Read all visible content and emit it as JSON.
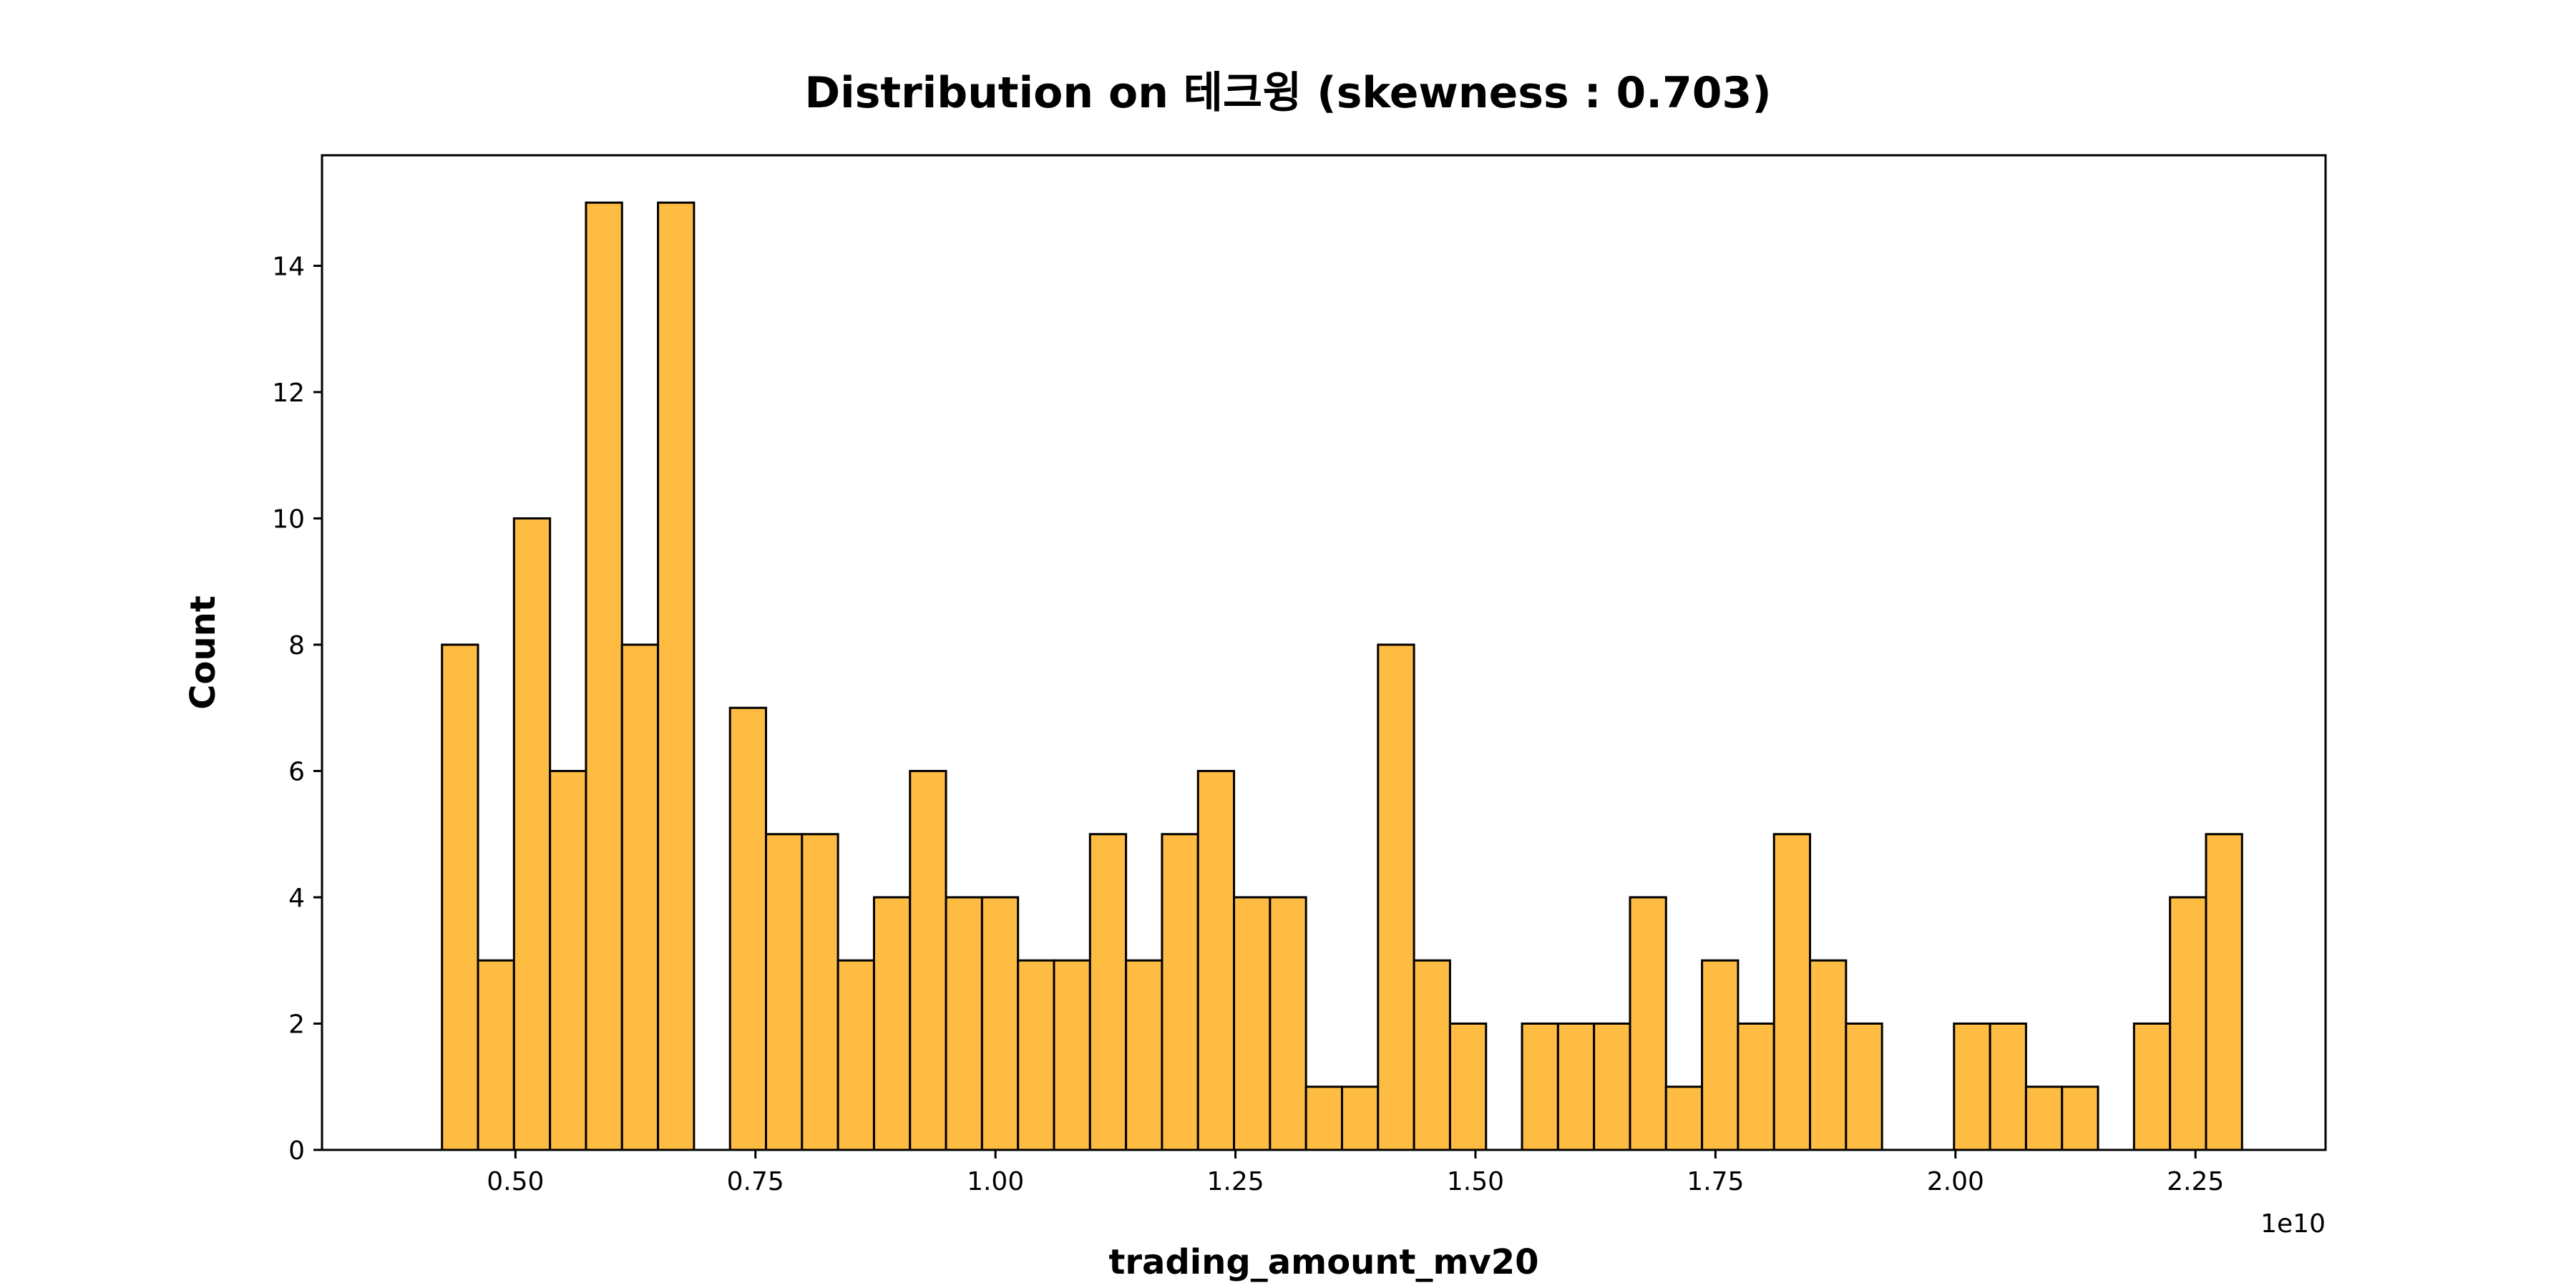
{
  "chart_data": {
    "type": "bar",
    "title": "Distribution on 테크윙 (skewness : 0.703)",
    "xlabel": "trading_amount_mv20",
    "ylabel": "Count",
    "x_offset_label": "1e10",
    "xlim": [
      0.2985,
      2.3855
    ],
    "ylim": [
      0,
      15.75
    ],
    "bin_start": 0.4235,
    "bin_width": 0.0375,
    "counts": [
      8,
      3,
      10,
      6,
      15,
      8,
      15,
      0,
      7,
      5,
      5,
      3,
      4,
      6,
      4,
      4,
      3,
      3,
      5,
      3,
      5,
      6,
      4,
      4,
      1,
      1,
      8,
      3,
      2,
      0,
      2,
      2,
      2,
      4,
      1,
      3,
      2,
      5,
      3,
      2,
      0,
      0,
      2,
      2,
      1,
      1,
      0,
      2,
      4,
      5
    ],
    "x_ticks": [
      0.5,
      0.75,
      1.0,
      1.25,
      1.5,
      1.75,
      2.0,
      2.25
    ],
    "x_tick_labels": [
      "0.50",
      "0.75",
      "1.00",
      "1.25",
      "1.50",
      "1.75",
      "2.00",
      "2.25"
    ],
    "y_ticks": [
      0,
      2,
      4,
      6,
      8,
      10,
      12,
      14
    ],
    "y_tick_labels": [
      "0",
      "2",
      "4",
      "6",
      "8",
      "10",
      "12",
      "14"
    ],
    "bar_color": "#ffbc42",
    "edge_color": "#000000",
    "grid": false
  }
}
